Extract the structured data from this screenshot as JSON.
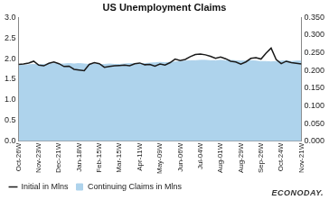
{
  "chart_data": {
    "type": "line",
    "title": "US Unemployment Claims",
    "annotations": [
      "ECONODAY."
    ],
    "categories": [
      "Oct-26W",
      null,
      null,
      null,
      "Nov-23W",
      null,
      null,
      null,
      "Dec-21W",
      null,
      null,
      null,
      "Jan-18W",
      null,
      null,
      null,
      "Feb-15W",
      null,
      null,
      null,
      "Mar-15W",
      null,
      null,
      null,
      "Apr-11W",
      null,
      null,
      null,
      "May-09W",
      null,
      null,
      null,
      "Jun-06W",
      null,
      null,
      null,
      "Jul-04W",
      null,
      null,
      null,
      "Aug-01W",
      null,
      null,
      null,
      "Aug-29W",
      null,
      null,
      null,
      "Sep-26W",
      null,
      null,
      null,
      "Oct-24W",
      null,
      null,
      null,
      "Nov-21W"
    ],
    "series": [
      {
        "name": "Continuing Claims in Mlns",
        "type": "area",
        "color": "#aed3ec",
        "axis": "y",
        "values": [
          1.83,
          1.84,
          1.85,
          1.86,
          1.85,
          1.86,
          1.87,
          1.88,
          1.87,
          1.87,
          1.88,
          1.87,
          1.88,
          1.87,
          1.86,
          1.87,
          1.86,
          1.86,
          1.87,
          1.86,
          1.86,
          1.87,
          1.88,
          1.87,
          1.87,
          1.88,
          1.89,
          1.9,
          1.91,
          1.9,
          1.91,
          1.92,
          1.93,
          1.94,
          1.95,
          1.95,
          1.96,
          1.96,
          1.95,
          1.95,
          1.96,
          1.95,
          1.96,
          1.95,
          1.94,
          1.94,
          1.95,
          1.94,
          1.93,
          1.93,
          1.92,
          1.93,
          1.94,
          1.95,
          1.93,
          1.94,
          1.94
        ]
      },
      {
        "name": "Initial in Mlns",
        "type": "line",
        "color": "#1a1a1a",
        "axis": "y2",
        "values": [
          0.217,
          0.218,
          0.221,
          0.226,
          0.215,
          0.213,
          0.22,
          0.224,
          0.219,
          0.211,
          0.212,
          0.203,
          0.201,
          0.199,
          0.217,
          0.222,
          0.219,
          0.209,
          0.211,
          0.213,
          0.214,
          0.215,
          0.213,
          0.219,
          0.221,
          0.216,
          0.217,
          0.212,
          0.218,
          0.215,
          0.222,
          0.232,
          0.228,
          0.231,
          0.239,
          0.245,
          0.246,
          0.244,
          0.24,
          0.234,
          0.238,
          0.233,
          0.226,
          0.224,
          0.218,
          0.224,
          0.234,
          0.236,
          0.232,
          0.249,
          0.263,
          0.231,
          0.219,
          0.226,
          0.222,
          0.22,
          0.218
        ]
      }
    ],
    "ylim": [
      0,
      3
    ],
    "yticks": [
      {
        "value": 0,
        "label": "0.0"
      },
      {
        "value": 0.5,
        "label": "0.5"
      },
      {
        "value": 1,
        "label": "1.0"
      },
      {
        "value": 1.5,
        "label": "1.5"
      },
      {
        "value": 2,
        "label": "2.0"
      },
      {
        "value": 2.5,
        "label": "2.5"
      },
      {
        "value": 3,
        "label": "3.0"
      }
    ],
    "y2lim": [
      0,
      0.35
    ],
    "y2ticks": [
      {
        "value": 0,
        "label": "0.000"
      },
      {
        "value": 0.05,
        "label": "0.050"
      },
      {
        "value": 0.1,
        "label": "0.100"
      },
      {
        "value": 0.15,
        "label": "0.150"
      },
      {
        "value": 0.2,
        "label": "0.200"
      },
      {
        "value": 0.25,
        "label": "0.250"
      },
      {
        "value": 0.3,
        "label": "0.300"
      },
      {
        "value": 0.35,
        "label": "0.350"
      }
    ],
    "grid": false,
    "legend": "bottom"
  }
}
